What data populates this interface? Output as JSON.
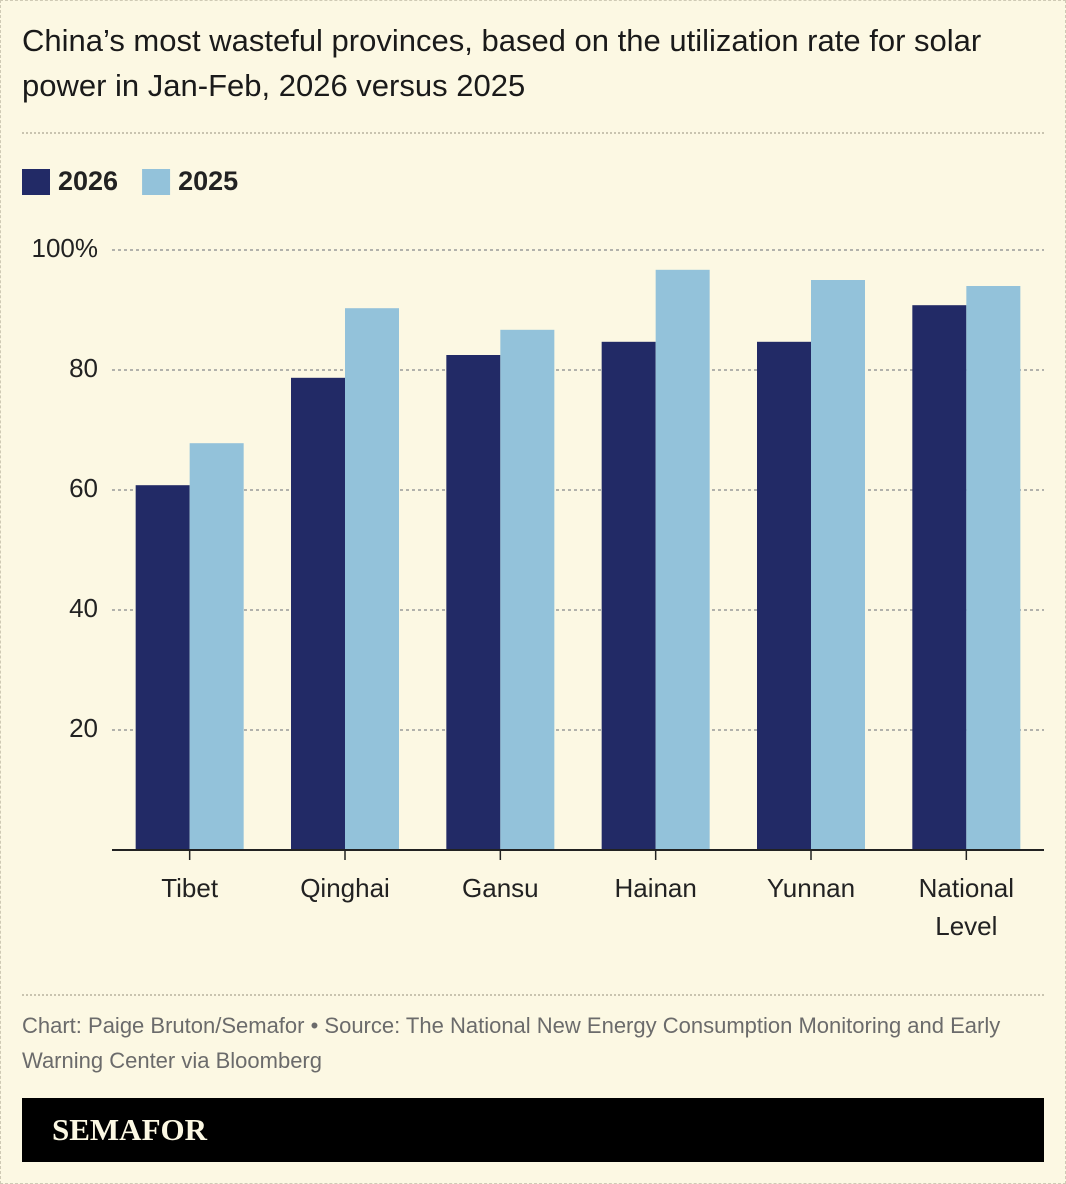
{
  "chart_data": {
    "type": "bar",
    "title": "China’s most wasteful provinces, based on the utilization rate for solar power in Jan-Feb, 2026 versus 2025",
    "categories": [
      "Tibet",
      "Qinghai",
      "Gansu",
      "Hainan",
      "Yunnan",
      "National Level"
    ],
    "series": [
      {
        "name": "2026",
        "color": "#222a66",
        "values": [
          60.8,
          78.7,
          82.5,
          84.7,
          84.7,
          90.8
        ]
      },
      {
        "name": "2025",
        "color": "#93c2da",
        "values": [
          67.8,
          90.3,
          86.7,
          96.7,
          95.0,
          94.0
        ]
      }
    ],
    "ylim": [
      0,
      100
    ],
    "yticks": [
      20,
      40,
      60,
      80,
      {
        "value": 100,
        "label": "100%"
      }
    ],
    "grid": true,
    "source": "Chart: Paige Bruton/Semafor • Source: The National New Energy Consumption Monitoring and Early Warning Center via Bloomberg",
    "brand": "SEMAFOR"
  }
}
